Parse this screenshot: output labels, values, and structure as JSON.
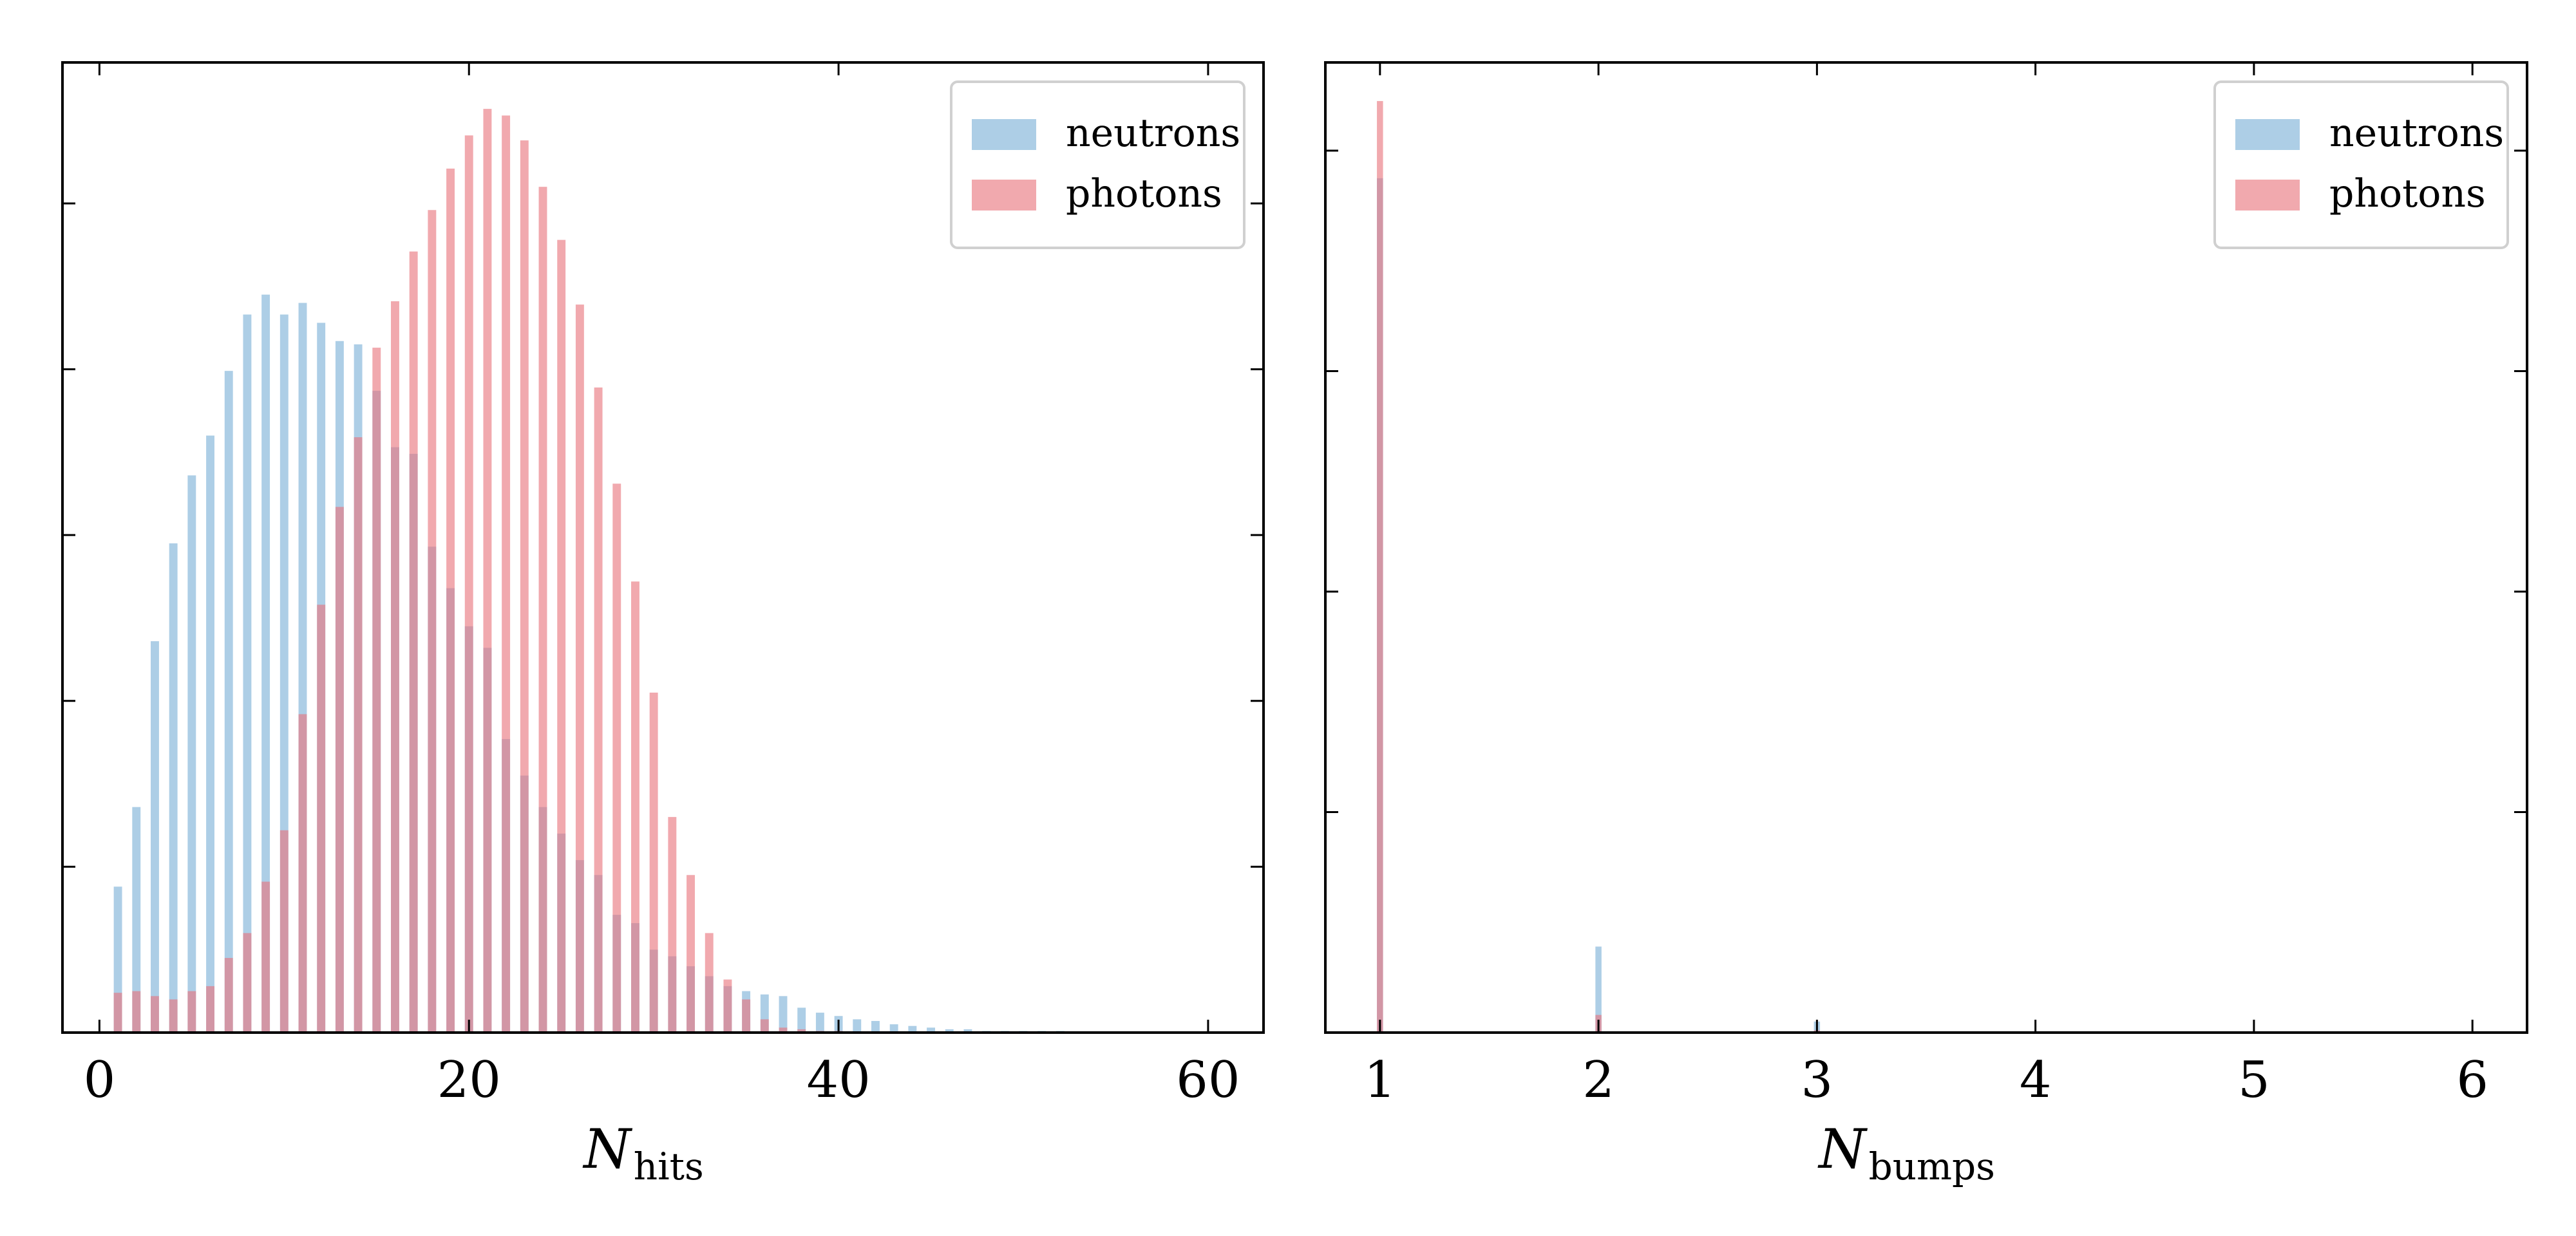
{
  "colors": {
    "neutrons": "#7bb0d7",
    "photons": "#e8747c",
    "frame": "#000000"
  },
  "chart_data": [
    {
      "type": "bar",
      "xlabel": "N",
      "xlabel_sub": "hits",
      "ylabel": "",
      "xlim": [
        -2,
        63
      ],
      "ylim": [
        0,
        5.85
      ],
      "xticks": [
        0,
        20,
        40,
        60
      ],
      "xticklabels": [
        "0",
        "20",
        "40",
        "60"
      ],
      "yticks": [
        1,
        2,
        3,
        4,
        5
      ],
      "yticklabels": [],
      "bar_width": 0.45,
      "legend": {
        "position": "top-right",
        "entries": [
          "neutrons",
          "photons"
        ]
      },
      "series": [
        {
          "name": "neutrons",
          "color": "#7bb0d7",
          "x": [
            1,
            2,
            3,
            4,
            5,
            6,
            7,
            8,
            9,
            10,
            11,
            12,
            13,
            14,
            15,
            16,
            17,
            18,
            19,
            20,
            21,
            22,
            23,
            24,
            25,
            26,
            27,
            28,
            29,
            30,
            31,
            32,
            33,
            34,
            35,
            36,
            37,
            38,
            39,
            40,
            41,
            42,
            43,
            44,
            45,
            46,
            47,
            48,
            49,
            50,
            51,
            52
          ],
          "values": [
            0.88,
            1.36,
            2.36,
            2.95,
            3.36,
            3.6,
            3.99,
            4.33,
            4.45,
            4.33,
            4.4,
            4.28,
            4.17,
            4.15,
            3.87,
            3.53,
            3.49,
            2.93,
            2.68,
            2.45,
            2.32,
            1.77,
            1.55,
            1.36,
            1.2,
            1.04,
            0.95,
            0.71,
            0.66,
            0.5,
            0.46,
            0.4,
            0.34,
            0.28,
            0.25,
            0.23,
            0.22,
            0.15,
            0.12,
            0.1,
            0.08,
            0.07,
            0.05,
            0.04,
            0.03,
            0.02,
            0.02,
            0.01,
            0.01,
            0.01,
            0.01,
            0.01
          ]
        },
        {
          "name": "photons",
          "color": "#e8747c",
          "x": [
            1,
            2,
            3,
            4,
            5,
            6,
            7,
            8,
            9,
            10,
            11,
            12,
            13,
            14,
            15,
            16,
            17,
            18,
            19,
            20,
            21,
            22,
            23,
            24,
            25,
            26,
            27,
            28,
            29,
            30,
            31,
            32,
            33,
            34,
            35,
            36,
            37,
            38,
            39,
            40
          ],
          "values": [
            0.24,
            0.25,
            0.22,
            0.2,
            0.25,
            0.28,
            0.45,
            0.6,
            0.91,
            1.22,
            1.92,
            2.58,
            3.17,
            3.59,
            4.13,
            4.41,
            4.71,
            4.96,
            5.21,
            5.41,
            5.57,
            5.53,
            5.38,
            5.1,
            4.78,
            4.39,
            3.89,
            3.31,
            2.72,
            2.05,
            1.3,
            0.95,
            0.6,
            0.32,
            0.2,
            0.08,
            0.03,
            0.02,
            0.01,
            0.01
          ]
        }
      ]
    },
    {
      "type": "bar",
      "xlabel": "N",
      "xlabel_sub": "bumps",
      "ylabel": "",
      "xlim": [
        0.75,
        6.25
      ],
      "ylim": [
        0,
        0.88
      ],
      "xticks": [
        1,
        2,
        3,
        4,
        5,
        6
      ],
      "xticklabels": [
        "1",
        "2",
        "3",
        "4",
        "5",
        "6"
      ],
      "yticks": [
        0.2,
        0.4,
        0.6,
        0.8
      ],
      "yticklabels": [],
      "bar_width": 0.028,
      "legend": {
        "position": "top-right",
        "entries": [
          "neutrons",
          "photons"
        ]
      },
      "series": [
        {
          "name": "neutrons",
          "color": "#7bb0d7",
          "x": [
            1,
            2,
            3
          ],
          "values": [
            0.775,
            0.078,
            0.01
          ]
        },
        {
          "name": "photons",
          "color": "#e8747c",
          "x": [
            1,
            2,
            3
          ],
          "values": [
            0.845,
            0.016,
            0.002
          ]
        }
      ]
    }
  ]
}
